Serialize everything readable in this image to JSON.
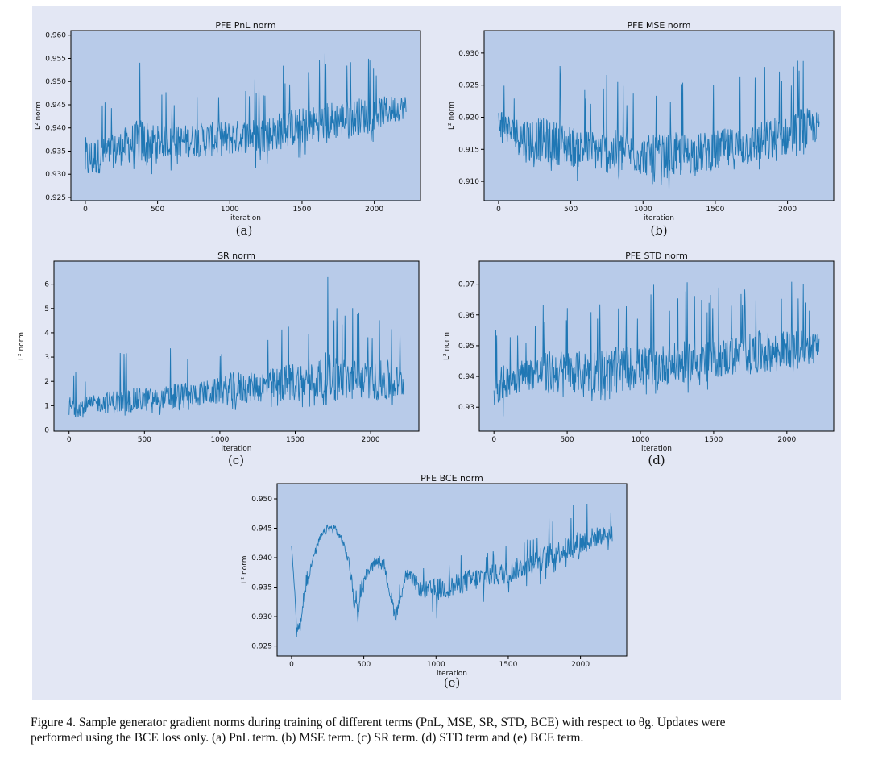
{
  "charts": [
    {
      "title": "PFE PnL norm",
      "xlabel": "iteration",
      "ylabel": "L² norm",
      "sublabel": "(a)",
      "yticks": [
        "0.925",
        "0.930",
        "0.935",
        "0.940",
        "0.945",
        "0.950",
        "0.955",
        "0.960"
      ],
      "xticks": [
        "0",
        "500",
        "1000",
        "1500",
        "2000"
      ]
    },
    {
      "title": "PFE MSE norm",
      "xlabel": "iteration",
      "ylabel": "L² norm",
      "sublabel": "(b)",
      "yticks": [
        "0.910",
        "0.915",
        "0.920",
        "0.925",
        "0.930"
      ],
      "xticks": [
        "0",
        "500",
        "1000",
        "1500",
        "2000"
      ]
    },
    {
      "title": "SR norm",
      "xlabel": "iteration",
      "ylabel": "L² norm",
      "sublabel": "(c)",
      "yticks": [
        "0",
        "1",
        "2",
        "3",
        "4",
        "5",
        "6"
      ],
      "xticks": [
        "0",
        "500",
        "1000",
        "1500",
        "2000"
      ]
    },
    {
      "title": "PFE STD norm",
      "xlabel": "iteration",
      "ylabel": "L² norm",
      "sublabel": "(d)",
      "yticks": [
        "0.93",
        "0.94",
        "0.95",
        "0.96",
        "0.97"
      ],
      "xticks": [
        "0",
        "500",
        "1000",
        "1500",
        "2000"
      ]
    },
    {
      "title": "PFE BCE norm",
      "xlabel": "iteration",
      "ylabel": "L² norm",
      "sublabel": "(e)",
      "yticks": [
        "0.925",
        "0.930",
        "0.935",
        "0.940",
        "0.945",
        "0.950"
      ],
      "xticks": [
        "0",
        "500",
        "1000",
        "1500",
        "2000"
      ]
    }
  ],
  "caption": {
    "line1": "Figure 4.  Sample generator gradient norms during training of different terms (PnL, MSE, SR, STD, BCE) with respect to θg. Updates were",
    "line2": "performed using the BCE loss only. (a) PnL term. (b) MSE term. (c) SR term. (d) STD term and (e) BCE term."
  },
  "colors": {
    "line": "#1f77b4",
    "plot_bg": "#b8cbe9",
    "panel_bg": "#e3e7f4"
  },
  "chart_data": [
    {
      "type": "line",
      "title": "PFE PnL norm",
      "xlabel": "iteration",
      "ylabel": "L² norm",
      "xlim": [
        -100,
        2320
      ],
      "ylim": [
        0.9243,
        0.961
      ],
      "series": [
        {
          "x": [
            0,
            100,
            200,
            300,
            400,
            500,
            600,
            700,
            800,
            900,
            1000,
            1100,
            1200,
            1300,
            1400,
            1500,
            1600,
            1700,
            1800,
            1900,
            2000,
            2100,
            2200
          ],
          "mean": [
            0.933,
            0.934,
            0.935,
            0.9365,
            0.937,
            0.937,
            0.937,
            0.9372,
            0.9375,
            0.9375,
            0.9378,
            0.9382,
            0.9385,
            0.939,
            0.9398,
            0.9405,
            0.941,
            0.9415,
            0.942,
            0.9425,
            0.943,
            0.9438,
            0.9445
          ],
          "low": [
            0.9265,
            0.927,
            0.9285,
            0.929,
            0.93,
            0.93,
            0.93,
            0.93,
            0.9305,
            0.93,
            0.9305,
            0.931,
            0.931,
            0.932,
            0.9325,
            0.933,
            0.934,
            0.9345,
            0.935,
            0.9355,
            0.937,
            0.938,
            0.939
          ],
          "high": [
            0.953,
            0.947,
            0.948,
            0.951,
            0.9585,
            0.949,
            0.948,
            0.949,
            0.95,
            0.95,
            0.9505,
            0.9505,
            0.951,
            0.953,
            0.9555,
            0.9535,
            0.955,
            0.9575,
            0.956,
            0.957,
            0.9555,
            0.9545,
            0.953
          ]
        }
      ]
    },
    {
      "type": "line",
      "title": "PFE MSE norm",
      "xlabel": "iteration",
      "ylabel": "L² norm",
      "xlim": [
        -100,
        2320
      ],
      "ylim": [
        0.907,
        0.9335
      ],
      "series": [
        {
          "x": [
            0,
            100,
            200,
            300,
            400,
            500,
            600,
            700,
            800,
            900,
            1000,
            1100,
            1200,
            1300,
            1400,
            1500,
            1600,
            1700,
            1800,
            1900,
            2000,
            2100,
            2200
          ],
          "mean": [
            0.9195,
            0.9175,
            0.9165,
            0.9165,
            0.916,
            0.9155,
            0.915,
            0.9148,
            0.9145,
            0.9145,
            0.914,
            0.914,
            0.914,
            0.9142,
            0.9145,
            0.9148,
            0.915,
            0.9155,
            0.916,
            0.9165,
            0.917,
            0.9178,
            0.9185
          ],
          "low": [
            0.9155,
            0.913,
            0.912,
            0.9115,
            0.911,
            0.91,
            0.91,
            0.9095,
            0.909,
            0.909,
            0.9085,
            0.9085,
            0.9082,
            0.9085,
            0.9085,
            0.909,
            0.9095,
            0.91,
            0.9105,
            0.9105,
            0.911,
            0.9115,
            0.9135
          ],
          "high": [
            0.928,
            0.926,
            0.932,
            0.9295,
            0.929,
            0.9275,
            0.926,
            0.9265,
            0.928,
            0.9255,
            0.925,
            0.926,
            0.9275,
            0.926,
            0.925,
            0.9265,
            0.927,
            0.927,
            0.927,
            0.93,
            0.9265,
            0.9325,
            0.926
          ]
        }
      ]
    },
    {
      "type": "line",
      "title": "SR norm",
      "xlabel": "iteration",
      "ylabel": "L² norm",
      "xlim": [
        -100,
        2320
      ],
      "ylim": [
        -0.05,
        6.95
      ],
      "series": [
        {
          "x": [
            0,
            100,
            200,
            300,
            400,
            500,
            600,
            700,
            800,
            900,
            1000,
            1100,
            1200,
            1300,
            1400,
            1500,
            1600,
            1700,
            1800,
            1900,
            2000,
            2100,
            2200
          ],
          "mean": [
            0.9,
            1.0,
            1.1,
            1.15,
            1.2,
            1.25,
            1.3,
            1.35,
            1.45,
            1.5,
            1.6,
            1.7,
            1.75,
            1.8,
            1.9,
            2.0,
            2.05,
            2.1,
            2.1,
            2.05,
            2.0,
            2.0,
            1.95
          ],
          "low": [
            0.4,
            0.45,
            0.5,
            0.5,
            0.55,
            0.55,
            0.6,
            0.6,
            0.6,
            0.65,
            0.7,
            0.7,
            0.75,
            0.8,
            0.8,
            0.85,
            0.9,
            0.9,
            0.85,
            0.85,
            0.8,
            0.8,
            0.7
          ],
          "high": [
            3.35,
            2.2,
            2.5,
            3.2,
            3.3,
            3.3,
            2.5,
            4.2,
            3.0,
            3.5,
            3.6,
            4.6,
            3.9,
            4.4,
            4.5,
            5.3,
            4.5,
            6.7,
            5.5,
            5.5,
            4.5,
            5.7,
            4.2
          ]
        }
      ]
    },
    {
      "type": "line",
      "title": "PFE STD norm",
      "xlabel": "iteration",
      "ylabel": "L² norm",
      "xlim": [
        -100,
        2320
      ],
      "ylim": [
        0.9222,
        0.9775
      ],
      "series": [
        {
          "x": [
            0,
            100,
            200,
            300,
            400,
            500,
            600,
            700,
            800,
            900,
            1000,
            1100,
            1200,
            1300,
            1400,
            1500,
            1600,
            1700,
            1800,
            1900,
            2000,
            2100,
            2200
          ],
          "mean": [
            0.936,
            0.939,
            0.9405,
            0.941,
            0.9412,
            0.9415,
            0.9415,
            0.9418,
            0.942,
            0.9425,
            0.943,
            0.9435,
            0.944,
            0.9445,
            0.945,
            0.9455,
            0.9465,
            0.947,
            0.9475,
            0.948,
            0.949,
            0.9495,
            0.95
          ],
          "low": [
            0.926,
            0.927,
            0.929,
            0.93,
            0.9305,
            0.931,
            0.931,
            0.9315,
            0.932,
            0.932,
            0.933,
            0.9335,
            0.934,
            0.9345,
            0.935,
            0.936,
            0.937,
            0.9375,
            0.9385,
            0.9395,
            0.941,
            0.942,
            0.944
          ],
          "high": [
            0.958,
            0.956,
            0.957,
            0.96,
            0.971,
            0.968,
            0.966,
            0.97,
            0.97,
            0.971,
            0.968,
            0.97,
            0.969,
            0.971,
            0.97,
            0.968,
            0.972,
            0.97,
            0.977,
            0.972,
            0.973,
            0.971,
            0.965
          ]
        }
      ]
    },
    {
      "type": "line",
      "title": "PFE BCE norm",
      "xlabel": "iteration",
      "ylabel": "L² norm",
      "xlim": [
        -100,
        2320
      ],
      "ylim": [
        0.9233,
        0.9526
      ],
      "series": [
        {
          "x": [
            0,
            40,
            60,
            100,
            150,
            200,
            250,
            300,
            350,
            400,
            430,
            460,
            500,
            550,
            600,
            650,
            700,
            720,
            760,
            800,
            850,
            900,
            1000,
            1100,
            1200,
            1300,
            1400,
            1500,
            1600,
            1700,
            1800,
            1900,
            2000,
            2100,
            2200
          ],
          "mean": [
            0.9425,
            0.927,
            0.9285,
            0.935,
            0.94,
            0.9435,
            0.945,
            0.945,
            0.943,
            0.939,
            0.933,
            0.931,
            0.936,
            0.9385,
            0.9395,
            0.9375,
            0.932,
            0.93,
            0.934,
            0.937,
            0.936,
            0.9345,
            0.9345,
            0.935,
            0.936,
            0.9365,
            0.937,
            0.9375,
            0.9385,
            0.9395,
            0.9405,
            0.9415,
            0.9425,
            0.9435,
            0.944
          ],
          "low": [
            0.9395,
            0.9243,
            0.9265,
            0.933,
            0.9385,
            0.942,
            0.9435,
            0.9435,
            0.9415,
            0.937,
            0.927,
            0.9285,
            0.934,
            0.937,
            0.938,
            0.9355,
            0.9285,
            0.9275,
            0.9315,
            0.934,
            0.932,
            0.931,
            0.9295,
            0.93,
            0.931,
            0.9315,
            0.932,
            0.933,
            0.934,
            0.935,
            0.9365,
            0.938,
            0.939,
            0.94,
            0.941
          ],
          "high": [
            0.9445,
            0.929,
            0.931,
            0.9375,
            0.942,
            0.9455,
            0.947,
            0.948,
            0.945,
            0.9415,
            0.936,
            0.934,
            0.938,
            0.94,
            0.941,
            0.9395,
            0.935,
            0.933,
            0.9365,
            0.9395,
            0.939,
            0.938,
            0.94,
            0.9395,
            0.941,
            0.942,
            0.942,
            0.943,
            0.944,
            0.9455,
            0.9475,
            0.948,
            0.951,
            0.949,
            0.948
          ]
        }
      ]
    }
  ]
}
